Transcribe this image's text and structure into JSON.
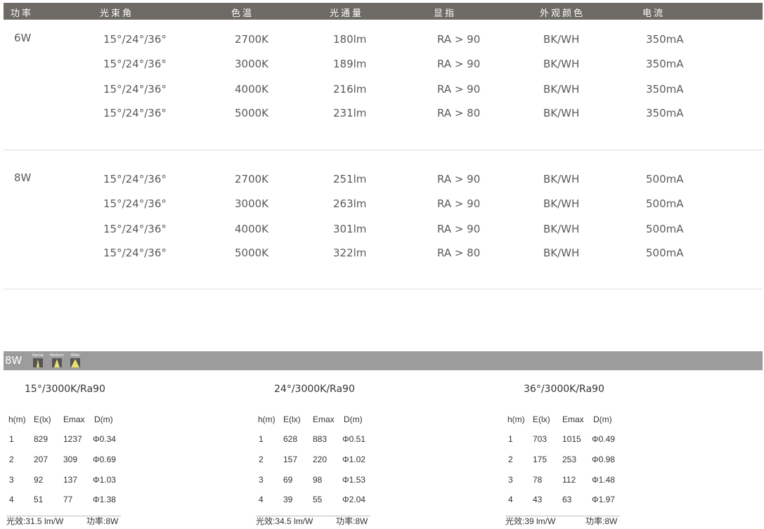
{
  "header": [
    "功率",
    "光束角",
    "色温",
    "光通量",
    "显指",
    "外观颜色",
    "电流"
  ],
  "spec_groups": [
    {
      "power": "6W",
      "rows": [
        [
          "15°/24°/36°",
          "2700K",
          "180lm",
          "RA > 90",
          "BK/WH",
          "350mA"
        ],
        [
          "15°/24°/36°",
          "3000K",
          "189lm",
          "RA > 90",
          "BK/WH",
          "350mA"
        ],
        [
          "15°/24°/36°",
          "4000K",
          "216lm",
          "RA > 90",
          "BK/WH",
          "350mA"
        ],
        [
          "15°/24°/36°",
          "5000K",
          "231lm",
          "RA > 80",
          "BK/WH",
          "350mA"
        ]
      ]
    },
    {
      "power": "8W",
      "rows": [
        [
          "15°/24°/36°",
          "2700K",
          "251lm",
          "RA > 90",
          "BK/WH",
          "500mA"
        ],
        [
          "15°/24°/36°",
          "3000K",
          "263lm",
          "RA > 90",
          "BK/WH",
          "500mA"
        ],
        [
          "15°/24°/36°",
          "4000K",
          "301lm",
          "RA > 90",
          "BK/WH",
          "500mA"
        ],
        [
          "15°/24°/36°",
          "5000K",
          "322lm",
          "RA > 80",
          "BK/WH",
          "500mA"
        ]
      ]
    }
  ],
  "photometric": {
    "power_label": "8W",
    "beam_icons": [
      {
        "label": "Narow",
        "spread": 0.3
      },
      {
        "label": "Medium",
        "spread": 0.5
      },
      {
        "label": "Wide",
        "spread": 0.8
      }
    ],
    "columns": [
      "h(m)",
      "E(lx)",
      "Emax",
      "D(m)"
    ],
    "tables": [
      {
        "title": "15°/3000K/Ra90",
        "rows": [
          [
            "1",
            "829",
            "1237",
            "Φ0.34"
          ],
          [
            "2",
            "207",
            "309",
            "Φ0.69"
          ],
          [
            "3",
            "92",
            "137",
            "Φ1.03"
          ],
          [
            "4",
            "51",
            "77",
            "Φ1.38"
          ]
        ],
        "efficacy": "光效:31.5 lm/W",
        "power": "功率:8W"
      },
      {
        "title": "24°/3000K/Ra90",
        "rows": [
          [
            "1",
            "628",
            "883",
            "Φ0.51"
          ],
          [
            "2",
            "157",
            "220",
            "Φ1.02"
          ],
          [
            "3",
            "69",
            "98",
            "Φ1.53"
          ],
          [
            "4",
            "39",
            "55",
            "Φ2.04"
          ]
        ],
        "efficacy": "光效:34.5 lm/W",
        "power": "功率:8W"
      },
      {
        "title": "36°/3000K/Ra90",
        "rows": [
          [
            "1",
            "703",
            "1015",
            "Φ0.49"
          ],
          [
            "2",
            "175",
            "253",
            "Φ0.98"
          ],
          [
            "3",
            "78",
            "112",
            "Φ1.48"
          ],
          [
            "4",
            "43",
            "63",
            "Φ1.97"
          ]
        ],
        "efficacy": "光效:39 lm/W",
        "power": "功率:8W"
      }
    ]
  },
  "colors": {
    "header_bg": "#6e6b67",
    "section_bar_bg": "#9c9c9c",
    "beam_light": "#e8e070"
  }
}
